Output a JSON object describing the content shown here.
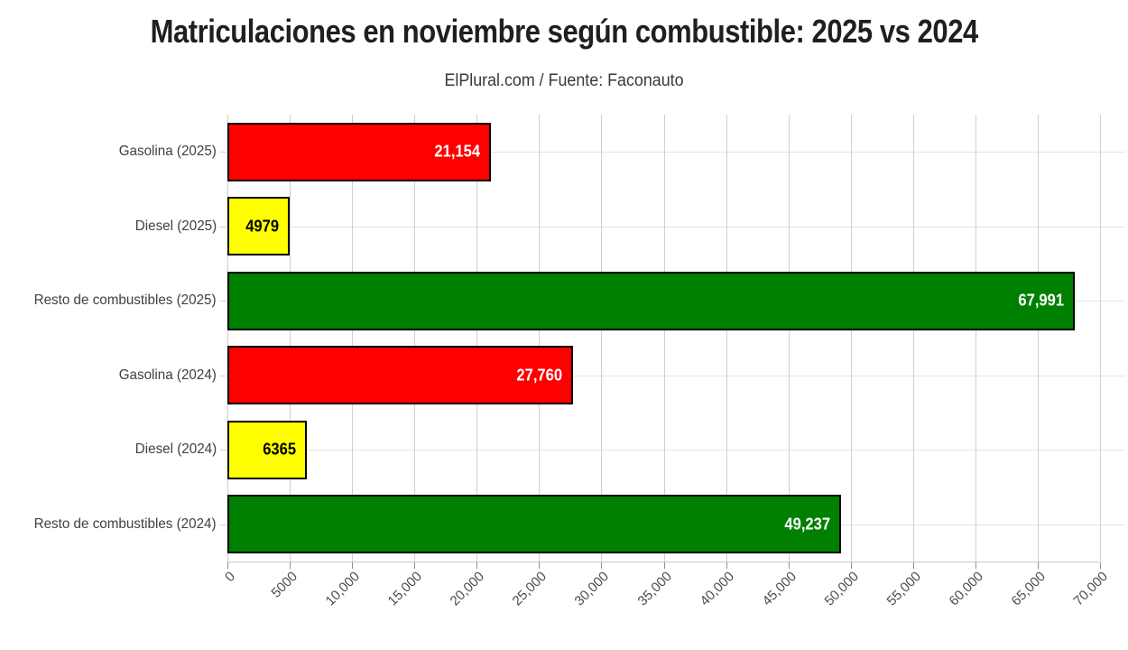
{
  "header": {
    "title": "Matriculaciones en noviembre según combustible: 2025 vs 2024",
    "subtitle": "ElPlural.com / Fuente: Faconauto"
  },
  "chart_data": {
    "type": "bar",
    "orientation": "horizontal",
    "title": "Matriculaciones en noviembre según combustible: 2025 vs 2024",
    "subtitle": "ElPlural.com / Fuente: Faconauto",
    "categories": [
      "Gasolina (2025)",
      "Diesel (2025)",
      "Resto de combustibles (2025)",
      "Gasolina (2024)",
      "Diesel (2024)",
      "Resto de combustibles (2024)"
    ],
    "values": [
      21154,
      4979,
      67991,
      27760,
      6365,
      49237
    ],
    "value_labels": [
      "21,154",
      "4979",
      "67,991",
      "27,760",
      "6365",
      "49,237"
    ],
    "bar_colors": [
      "#ff0000",
      "#ffff00",
      "#008000",
      "#ff0000",
      "#ffff00",
      "#008000"
    ],
    "value_label_colors": [
      "#ffffff",
      "#000000",
      "#ffffff",
      "#ffffff",
      "#000000",
      "#ffffff"
    ],
    "bar_border_color": "#000000",
    "xlim": [
      0,
      70000
    ],
    "x_ticks": [
      0,
      5000,
      10000,
      15000,
      20000,
      25000,
      30000,
      35000,
      40000,
      45000,
      50000,
      55000,
      60000,
      65000,
      70000
    ],
    "x_tick_labels": [
      "0",
      "5000",
      "10,000",
      "15,000",
      "20,000",
      "25,000",
      "30,000",
      "35,000",
      "40,000",
      "45,000",
      "50,000",
      "55,000",
      "60,000",
      "65,000",
      "70,000"
    ],
    "grid": true,
    "legend": "none"
  },
  "style": {
    "background": "#ffffff",
    "red": "#ff0000",
    "yellow": "#ffff00",
    "green": "#008000",
    "grid_vertical_color": "#cfcfcf",
    "grid_horizontal_color": "#e3e3e3",
    "axis_line_color": "#c8c8c8",
    "tick_mark_color": "#8f8f8f",
    "category_label_color": "#404040",
    "tick_label_color": "#4d4d4d",
    "title_color": "#1f1f1f",
    "subtitle_color": "#383838"
  }
}
